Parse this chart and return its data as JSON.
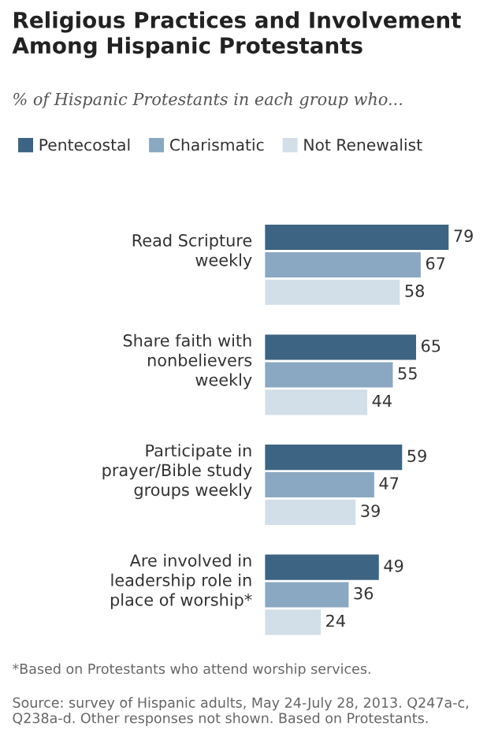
{
  "chart_data": {
    "type": "bar",
    "orientation": "horizontal",
    "title": "Religious Practices and Involvement\nAmong Hispanic Protestants",
    "subtitle": "% of Hispanic Protestants in each group who...",
    "categories": [
      "Read Scripture\nweekly",
      "Share faith with\nnonbelievers\nweekly",
      "Participate in\nprayer/Bible study\ngroups weekly",
      "Are involved in\nleadership role in\nplace of worship*"
    ],
    "series": [
      {
        "name": "Pentecostal",
        "color": "#3d6482",
        "values": [
          79,
          65,
          59,
          49
        ]
      },
      {
        "name": "Charismatic",
        "color": "#8ba8c2",
        "values": [
          67,
          55,
          47,
          36
        ]
      },
      {
        "name": "Not Renewalist",
        "color": "#d2dfe9",
        "values": [
          58,
          44,
          39,
          24
        ]
      }
    ],
    "data_labels": true,
    "legend": "top",
    "annotations": [
      "*Based on Protestants who attend worship services.",
      "Source: survey of Hispanic adults, May 24-July 28, 2013. Q247a-c, Q238a-d. Other responses not shown. Based on Protestants."
    ]
  }
}
